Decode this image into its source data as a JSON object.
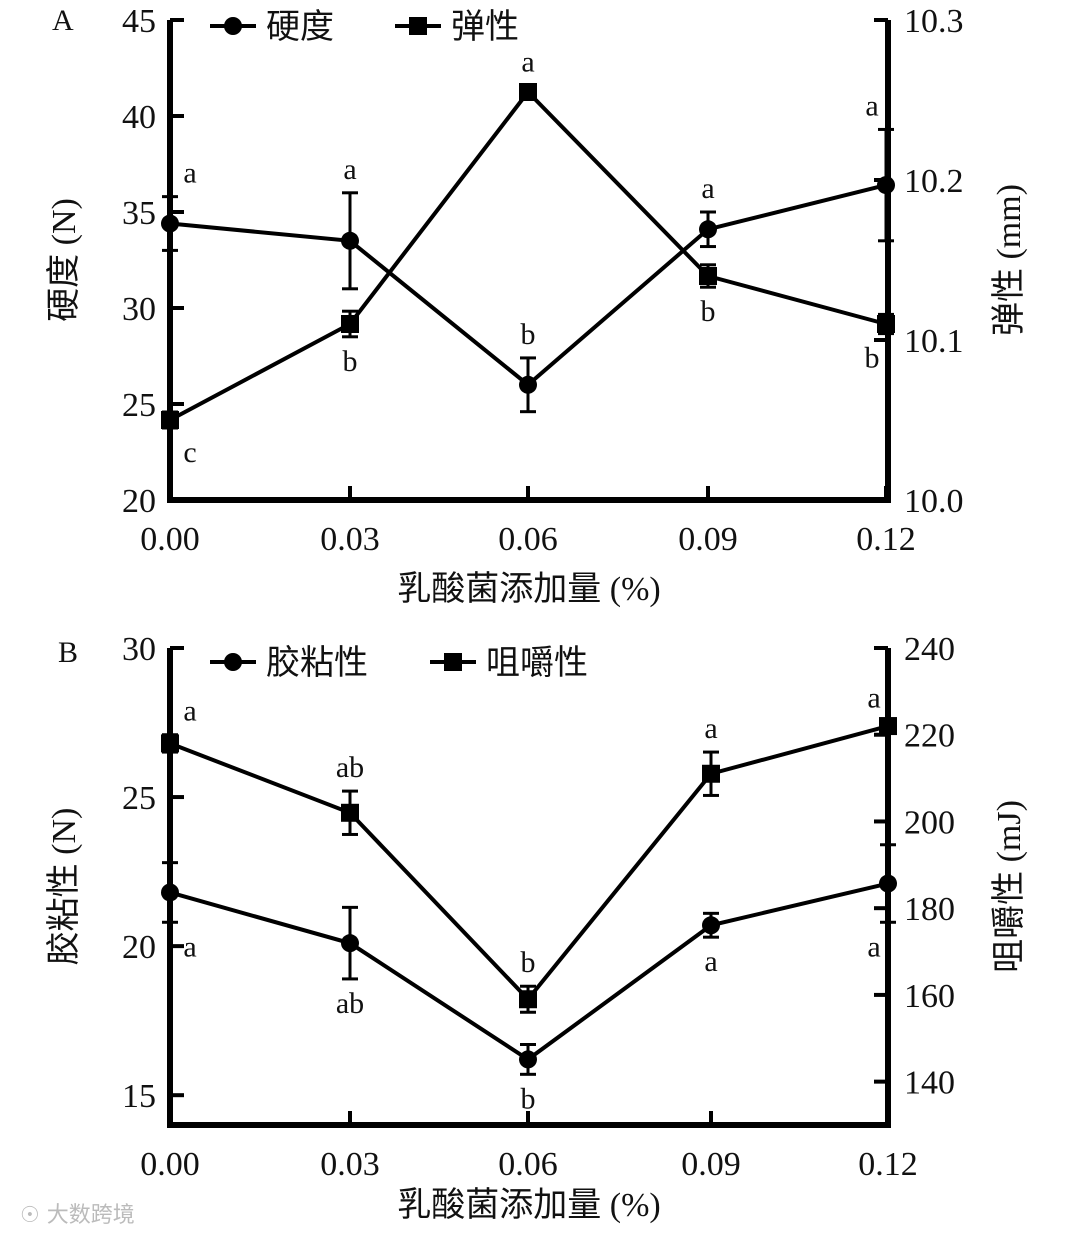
{
  "watermark": "大数跨境",
  "chart_data": [
    {
      "type": "line",
      "panel": "A",
      "xlabel": "乳酸菌添加量 (%)",
      "categories": [
        "0.00",
        "0.03",
        "0.06",
        "0.09",
        "0.12"
      ],
      "ylabel_left": "硬度 (N)",
      "ylabel_right": "弹性 (mm)",
      "ylim_left": [
        20,
        45
      ],
      "yticks_left": [
        "20",
        "25",
        "30",
        "35",
        "40",
        "45"
      ],
      "ylim_right": [
        10.0,
        10.3
      ],
      "yticks_right": [
        "10.0",
        "10.1",
        "10.2",
        "10.3"
      ],
      "legend_position": "top-left",
      "series": [
        {
          "name": "硬度",
          "axis": "left",
          "marker": "circle",
          "values": [
            34.4,
            33.5,
            26.0,
            34.1,
            36.4
          ],
          "errors": [
            1.4,
            2.5,
            1.4,
            0.9,
            2.9
          ],
          "letters": [
            "a",
            "a",
            "b",
            "a",
            "a"
          ],
          "letter_pos": [
            "above",
            "above",
            "above",
            "above",
            "above"
          ]
        },
        {
          "name": "弹性",
          "axis": "right",
          "marker": "square",
          "values": [
            10.05,
            10.11,
            10.255,
            10.14,
            10.11
          ],
          "errors": [
            0.005,
            0.008,
            0.004,
            0.007,
            0.006
          ],
          "letters": [
            "c",
            "b",
            "a",
            "b",
            "b"
          ],
          "letter_pos": [
            "below",
            "below",
            "above",
            "below",
            "below"
          ]
        }
      ]
    },
    {
      "type": "line",
      "panel": "B",
      "xlabel": "乳酸菌添加量 (%)",
      "categories": [
        "0.00",
        "0.03",
        "0.06",
        "0.09",
        "0.12"
      ],
      "ylabel_left": "胶粘性 (N)",
      "ylabel_right": "咀嚼性 (mJ)",
      "ylim_left": [
        14,
        30
      ],
      "yticks_left": [
        "15",
        "20",
        "25",
        "30"
      ],
      "ylim_right": [
        130,
        240
      ],
      "yticks_right": [
        "140",
        "160",
        "180",
        "200",
        "220",
        "240"
      ],
      "legend_position": "top-left",
      "series": [
        {
          "name": "胶粘性",
          "axis": "left",
          "marker": "circle",
          "values": [
            21.8,
            20.1,
            16.2,
            20.7,
            22.1
          ],
          "errors": [
            1.0,
            1.2,
            0.5,
            0.4,
            1.3
          ],
          "letters": [
            "a",
            "ab",
            "b",
            "a",
            "a"
          ],
          "letter_pos": [
            "below",
            "below",
            "below",
            "below",
            "below"
          ]
        },
        {
          "name": "咀嚼性",
          "axis": "right",
          "marker": "square",
          "values": [
            218,
            202,
            159,
            211,
            222
          ],
          "errors": [
            2,
            5,
            3,
            5,
            1
          ],
          "letters": [
            "a",
            "ab",
            "b",
            "a",
            "a"
          ],
          "letter_pos": [
            "above",
            "above",
            "above",
            "above",
            "above"
          ]
        }
      ]
    }
  ]
}
